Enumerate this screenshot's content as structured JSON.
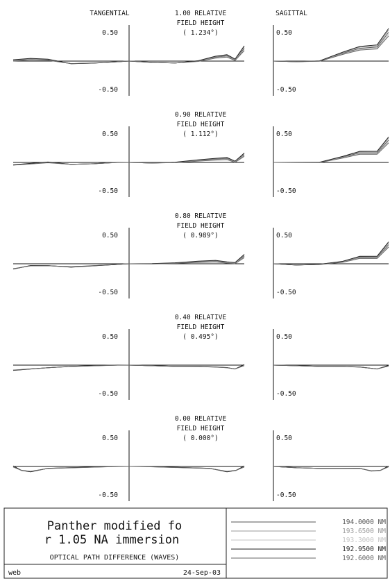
{
  "chart_data": {
    "type": "line",
    "column_labels": {
      "tangential": "TANGENTIAL",
      "sagittal": "SAGITTAL"
    },
    "ylim": [
      -0.5,
      0.5
    ],
    "tick_labels": {
      "top": "0.50",
      "bottom": "-0.50"
    },
    "fields": [
      {
        "line1": "1.00 RELATIVE",
        "line2": "FIELD HEIGHT",
        "line3": "( 1.234°)",
        "tangential": [
          [
            -1,
            0.01
          ],
          [
            -0.85,
            0.03
          ],
          [
            -0.7,
            0.02
          ],
          [
            -0.5,
            -0.04
          ],
          [
            -0.3,
            -0.03
          ],
          [
            -0.1,
            -0.01
          ],
          [
            0,
            0
          ],
          [
            0.2,
            -0.02
          ],
          [
            0.4,
            -0.03
          ],
          [
            0.6,
            0.0
          ],
          [
            0.75,
            0.06
          ],
          [
            0.85,
            0.08
          ],
          [
            0.92,
            0.02
          ],
          [
            1,
            0.2
          ]
        ],
        "sagittal": [
          [
            0,
            0
          ],
          [
            0.2,
            -0.01
          ],
          [
            0.4,
            0.0
          ],
          [
            0.6,
            0.12
          ],
          [
            0.75,
            0.2
          ],
          [
            0.9,
            0.22
          ],
          [
            1,
            0.45
          ]
        ]
      },
      {
        "line1": "0.90 RELATIVE",
        "line2": "FIELD HEIGHT",
        "line3": "( 1.112°)",
        "tangential": [
          [
            -1,
            -0.04
          ],
          [
            -0.85,
            -0.02
          ],
          [
            -0.7,
            0.0
          ],
          [
            -0.5,
            -0.03
          ],
          [
            -0.3,
            -0.02
          ],
          [
            -0.1,
            0.0
          ],
          [
            0,
            0
          ],
          [
            0.2,
            -0.01
          ],
          [
            0.4,
            0.0
          ],
          [
            0.6,
            0.03
          ],
          [
            0.75,
            0.05
          ],
          [
            0.85,
            0.06
          ],
          [
            0.92,
            0.01
          ],
          [
            1,
            0.12
          ]
        ],
        "sagittal": [
          [
            0,
            0
          ],
          [
            0.2,
            0.0
          ],
          [
            0.4,
            0.0
          ],
          [
            0.6,
            0.08
          ],
          [
            0.75,
            0.15
          ],
          [
            0.9,
            0.15
          ],
          [
            1,
            0.35
          ]
        ]
      },
      {
        "line1": "0.80 RELATIVE",
        "line2": "FIELD HEIGHT",
        "line3": "( 0.989°)",
        "tangential": [
          [
            -1,
            -0.08
          ],
          [
            -0.85,
            -0.03
          ],
          [
            -0.7,
            -0.03
          ],
          [
            -0.5,
            -0.05
          ],
          [
            -0.3,
            -0.03
          ],
          [
            -0.1,
            -0.01
          ],
          [
            0,
            0
          ],
          [
            0.2,
            0.0
          ],
          [
            0.4,
            0.01
          ],
          [
            0.6,
            0.03
          ],
          [
            0.75,
            0.04
          ],
          [
            0.85,
            0.02
          ],
          [
            0.92,
            0.01
          ],
          [
            1,
            0.12
          ]
        ],
        "sagittal": [
          [
            0,
            0
          ],
          [
            0.2,
            -0.02
          ],
          [
            0.4,
            -0.01
          ],
          [
            0.6,
            0.03
          ],
          [
            0.75,
            0.1
          ],
          [
            0.9,
            0.1
          ],
          [
            1,
            0.3
          ]
        ]
      },
      {
        "line1": "0.40 RELATIVE",
        "line2": "FIELD HEIGHT",
        "line3": "( 0.495°)",
        "tangential": [
          [
            -1,
            -0.08
          ],
          [
            -0.85,
            -0.06
          ],
          [
            -0.7,
            -0.04
          ],
          [
            -0.5,
            -0.02
          ],
          [
            -0.3,
            -0.01
          ],
          [
            -0.1,
            0.0
          ],
          [
            0,
            0
          ],
          [
            0.2,
            -0.01
          ],
          [
            0.4,
            -0.02
          ],
          [
            0.6,
            -0.02
          ],
          [
            0.75,
            -0.03
          ],
          [
            0.85,
            -0.04
          ],
          [
            0.92,
            -0.06
          ],
          [
            1,
            0.0
          ]
        ],
        "sagittal": [
          [
            0,
            0
          ],
          [
            0.2,
            -0.01
          ],
          [
            0.4,
            -0.02
          ],
          [
            0.6,
            -0.02
          ],
          [
            0.75,
            -0.03
          ],
          [
            0.9,
            -0.06
          ],
          [
            1,
            -0.01
          ]
        ]
      },
      {
        "line1": "0.00 RELATIVE",
        "line2": "FIELD HEIGHT",
        "line3": "( 0.000°)",
        "tangential": [
          [
            -1,
            0.0
          ],
          [
            -0.93,
            -0.06
          ],
          [
            -0.85,
            -0.08
          ],
          [
            -0.7,
            -0.03
          ],
          [
            -0.5,
            -0.02
          ],
          [
            -0.3,
            -0.01
          ],
          [
            -0.1,
            0.0
          ],
          [
            0,
            0
          ],
          [
            0.1,
            0.0
          ],
          [
            0.3,
            -0.01
          ],
          [
            0.5,
            -0.02
          ],
          [
            0.7,
            -0.03
          ],
          [
            0.85,
            -0.08
          ],
          [
            0.93,
            -0.06
          ],
          [
            1,
            0.0
          ]
        ],
        "sagittal": [
          [
            0,
            0
          ],
          [
            0.2,
            -0.02
          ],
          [
            0.4,
            -0.03
          ],
          [
            0.6,
            -0.03
          ],
          [
            0.75,
            -0.03
          ],
          [
            0.85,
            -0.07
          ],
          [
            0.93,
            -0.06
          ],
          [
            1,
            0.0
          ]
        ]
      }
    ],
    "series": [
      {
        "name": "194.0000 NM",
        "color": "#555555"
      },
      {
        "name": "193.6500 NM",
        "color": "#999999"
      },
      {
        "name": "193.3000 NM",
        "color": "#c4c4c4"
      },
      {
        "name": "192.9500 NM",
        "color": "#222222"
      },
      {
        "name": "192.6000 NM",
        "color": "#666666"
      }
    ]
  },
  "footer": {
    "title_line1": "Panther modified fo",
    "title_line2": "r 1.05 NA immersion",
    "subtitle": "OPTICAL PATH DIFFERENCE (WAVES)",
    "left_label": "web",
    "date": "24-Sep-03"
  }
}
